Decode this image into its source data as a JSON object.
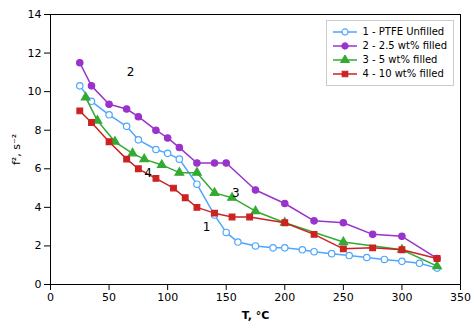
{
  "chart_data": {
    "type": "line",
    "xlabel": "T, °C",
    "ylabel": "f², s⁻²",
    "xlim": [
      0,
      350
    ],
    "ylim": [
      0,
      14
    ],
    "xticks": [
      0,
      50,
      100,
      150,
      200,
      250,
      300,
      350
    ],
    "yticks": [
      0,
      2,
      4,
      6,
      8,
      10,
      12,
      14
    ],
    "legend": "upper right",
    "series": [
      {
        "name": "1 - PTFE Unfilled",
        "color": "#4da6ff",
        "marker": "open circle",
        "x": [
          25,
          35,
          50,
          65,
          75,
          90,
          100,
          110,
          125,
          140,
          150,
          160,
          175,
          190,
          200,
          215,
          225,
          240,
          255,
          270,
          285,
          300,
          315,
          330
        ],
        "values": [
          10.3,
          9.5,
          8.8,
          8.2,
          7.5,
          7.0,
          6.8,
          6.5,
          5.2,
          3.6,
          2.7,
          2.2,
          2.0,
          1.9,
          1.9,
          1.8,
          1.7,
          1.6,
          1.5,
          1.4,
          1.3,
          1.2,
          1.1,
          0.85
        ]
      },
      {
        "name": "2 - 2.5 wt% filled",
        "color": "#9933cc",
        "marker": "circle",
        "x": [
          25,
          35,
          50,
          65,
          75,
          90,
          100,
          110,
          125,
          140,
          150,
          175,
          200,
          225,
          250,
          275,
          300,
          330
        ],
        "values": [
          11.5,
          10.3,
          9.35,
          9.1,
          8.7,
          8.0,
          7.6,
          7.1,
          6.3,
          6.3,
          6.3,
          4.9,
          4.2,
          3.3,
          3.2,
          2.6,
          2.5,
          1.35
        ]
      },
      {
        "name": "3 - 5 wt% filled",
        "color": "#33aa33",
        "marker": "triangle",
        "x": [
          30,
          40,
          55,
          70,
          80,
          95,
          110,
          125,
          140,
          155,
          175,
          200,
          250,
          300,
          330
        ],
        "values": [
          9.7,
          8.5,
          7.4,
          6.8,
          6.5,
          6.2,
          5.8,
          5.8,
          4.75,
          4.5,
          3.8,
          3.2,
          2.2,
          1.8,
          0.95
        ]
      },
      {
        "name": "4 - 10 wt% filled",
        "color": "#cc2222",
        "marker": "square",
        "x": [
          25,
          35,
          50,
          65,
          75,
          90,
          105,
          115,
          125,
          140,
          155,
          170,
          200,
          225,
          250,
          275,
          300,
          330
        ],
        "values": [
          9.0,
          8.4,
          7.4,
          6.5,
          6.0,
          5.5,
          5.0,
          4.5,
          4.0,
          3.7,
          3.5,
          3.5,
          3.2,
          2.6,
          1.85,
          1.9,
          1.8,
          1.35
        ]
      }
    ],
    "annotations": [
      {
        "x": 130,
        "y": 2.8,
        "text": "1"
      },
      {
        "x": 65,
        "y": 10.8,
        "text": "2"
      },
      {
        "x": 155,
        "y": 4.55,
        "text": "3"
      },
      {
        "x": 80,
        "y": 5.55,
        "text": "4"
      }
    ]
  }
}
